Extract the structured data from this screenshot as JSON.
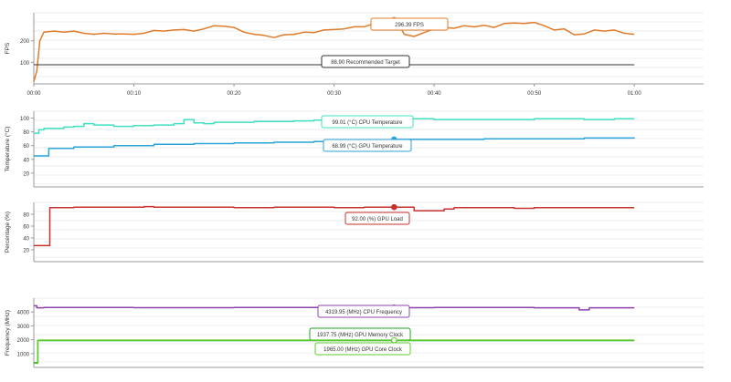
{
  "chart_data": [
    {
      "type": "line",
      "ylabel": "FPS",
      "ylim": [
        0,
        330
      ],
      "yticks": [
        "100",
        "200"
      ],
      "xticks": [
        "00:00",
        "00:10",
        "00:20",
        "00:30",
        "00:40",
        "00:50",
        "01:00"
      ],
      "xlim": [
        0,
        64
      ],
      "grid": true,
      "series": [
        {
          "name": "FPS",
          "unit": "",
          "color": "#e07b2a",
          "tooltip": "296.39 FPS",
          "marker": [
            36,
            296.39
          ],
          "x": [
            0,
            0.3,
            0.6,
            1,
            2,
            3,
            4,
            5,
            6,
            7,
            8,
            9,
            10,
            11,
            12,
            13,
            14,
            15,
            16,
            17,
            18,
            19,
            20,
            21,
            22,
            23,
            24,
            25,
            26,
            27,
            28,
            29,
            30,
            31,
            32,
            33,
            34,
            35,
            35.5,
            36,
            36.5,
            37,
            38,
            39,
            40,
            41,
            42,
            43,
            44,
            45,
            46,
            47,
            48,
            49,
            50,
            51,
            52,
            53,
            54,
            55,
            56,
            57,
            58,
            59,
            60
          ],
          "y": [
            10,
            60,
            200,
            240,
            245,
            240,
            245,
            235,
            230,
            235,
            232,
            232,
            230,
            235,
            248,
            245,
            250,
            252,
            245,
            255,
            270,
            268,
            262,
            240,
            230,
            225,
            215,
            228,
            230,
            240,
            238,
            250,
            252,
            255,
            265,
            265,
            280,
            296,
            300,
            296,
            275,
            230,
            220,
            238,
            255,
            262,
            258,
            270,
            265,
            272,
            262,
            280,
            282,
            280,
            285,
            270,
            250,
            255,
            228,
            232,
            250,
            245,
            250,
            235,
            230
          ]
        },
        {
          "name": "Recommended Target",
          "unit": "",
          "color": "#333333",
          "tooltip": "88.90 Recommended Target",
          "marker": [
            36,
            88.9
          ],
          "x": [
            0,
            60
          ],
          "y": [
            88.9,
            88.9
          ]
        }
      ]
    },
    {
      "type": "line",
      "ylabel": "Temperature (°C)",
      "ylim": [
        0,
        110
      ],
      "yticks": [
        "20",
        "40",
        "60",
        "80",
        "100"
      ],
      "grid": true,
      "series": [
        {
          "name": "CPU Temperature",
          "unit": "(°C)",
          "color": "#40e0c0",
          "tooltip": "99.01 (°C) CPU Temperature",
          "marker": [
            36,
            99.01
          ],
          "x": [
            0,
            0.5,
            1,
            3,
            4,
            5,
            6,
            8,
            10,
            12,
            14,
            15,
            16,
            17,
            18,
            20,
            22,
            24,
            26,
            28,
            30,
            32,
            34,
            36,
            38,
            40,
            45,
            50,
            55,
            58,
            60
          ],
          "y": [
            78,
            83,
            85,
            87,
            88,
            92,
            90,
            88,
            89,
            90,
            92,
            98,
            93,
            92,
            94,
            94,
            95,
            95,
            96,
            97,
            97,
            98,
            98,
            99,
            99,
            98,
            98,
            99,
            98,
            99,
            99
          ]
        },
        {
          "name": "GPU Temperature",
          "unit": "(°C)",
          "color": "#2aa4d8",
          "tooltip": "68.99 (°C) GPU Temperature",
          "marker": [
            36,
            68.99
          ],
          "x": [
            0,
            1,
            1.5,
            4,
            8,
            12,
            16,
            20,
            24,
            28,
            32,
            36,
            40,
            45,
            50,
            55,
            60
          ],
          "y": [
            45,
            45,
            56,
            58,
            60,
            62,
            63,
            64,
            65,
            66,
            67,
            69,
            69,
            70,
            70,
            71,
            72
          ]
        }
      ]
    },
    {
      "type": "line",
      "ylabel": "Percentage (%)",
      "ylim": [
        0,
        100
      ],
      "yticks": [
        "20",
        "40",
        "60",
        "80"
      ],
      "grid": true,
      "series": [
        {
          "name": "GPU Load",
          "unit": "(%)",
          "color": "#c8312e",
          "tooltip": "92.00 (%) GPU Load",
          "marker": [
            36,
            92
          ],
          "x": [
            0,
            1.5,
            1.6,
            4,
            8,
            11,
            12,
            14,
            18,
            20,
            24,
            28,
            30,
            33,
            36,
            37,
            38,
            40,
            41,
            42,
            46,
            48,
            50,
            52,
            56,
            60
          ],
          "y": [
            27,
            27,
            91,
            92,
            92,
            93,
            92,
            92,
            92,
            91,
            92,
            92,
            91,
            92,
            92,
            92,
            86,
            86,
            89,
            91,
            91,
            90,
            91,
            91,
            91,
            91
          ]
        }
      ]
    },
    {
      "type": "line",
      "ylabel": "Frequency (MHz)",
      "ylim": [
        0,
        5000
      ],
      "yticks": [
        "1000",
        "2000",
        "3000",
        "4000"
      ],
      "grid": true,
      "series": [
        {
          "name": "CPU Frequency",
          "unit": "(MHz)",
          "color": "#8e44ad",
          "tooltip": "4319.95 (MHz) CPU Frequency",
          "marker": [
            36,
            4319.95
          ],
          "x": [
            0,
            0.3,
            1,
            10,
            20,
            30,
            40,
            50,
            54,
            54.5,
            55,
            55.5,
            60
          ],
          "y": [
            4450,
            4300,
            4320,
            4310,
            4320,
            4310,
            4320,
            4300,
            4300,
            4150,
            4150,
            4300,
            4300
          ]
        },
        {
          "name": "GPU Memory Clock",
          "unit": "(MHz)",
          "color": "#27a327",
          "tooltip": "1937.75 (MHz) GPU Memory Clock",
          "marker": [
            36,
            1937.75
          ],
          "x": [
            0,
            0.3,
            0.4,
            60
          ],
          "y": [
            350,
            350,
            1937.75,
            1937.75
          ]
        },
        {
          "name": "GPU Core Clock",
          "unit": "(MHz)",
          "color": "#5ccc2e",
          "tooltip": "1965.00 (MHz) GPU Core Clock",
          "marker": [
            36,
            1965
          ],
          "x": [
            0,
            0.3,
            0.4,
            60
          ],
          "y": [
            300,
            300,
            1965,
            1965
          ]
        }
      ]
    }
  ]
}
